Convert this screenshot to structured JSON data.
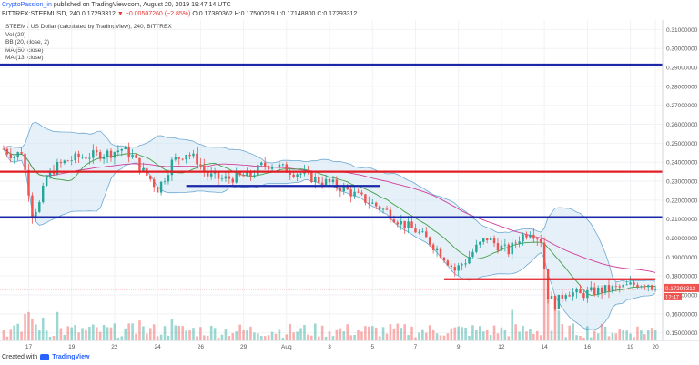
{
  "header": {
    "publisher_user": "CryptoPassion_in",
    "publisher_rest": " published on TradingView.com, August 20, 2019 19:47:14 UTC",
    "symbol_line": "BITTREX:STEEMUSD, 240  0.17293312",
    "change": "▼ −0.00507260 (−2.85%)",
    "ohlc": "O:0.17380362 H:0.17500219 L:0.17148800 C:0.17293312"
  },
  "legend": {
    "title": "STEEM / US Dollar (calculated by TradingView), 240, BITTREX",
    "lines": [
      "Vol (20)",
      "BB (20, close, 2)",
      "MA (50, close)",
      "MA (13, close)"
    ]
  },
  "footer": {
    "prefix": "Created with",
    "brand": "TradingView"
  },
  "chart_data": {
    "type": "candlestick",
    "title": "STEEM / US Dollar (calculated by TradingView), 240, BITTREX",
    "y_tick_labels": [
      "0.31000000",
      "0.30000000",
      "0.29000000",
      "0.28000000",
      "0.27000000",
      "0.26000000",
      "0.25000000",
      "0.24000000",
      "0.23000000",
      "0.22000000",
      "0.21000000",
      "0.20000000",
      "0.19000000",
      "0.18000000",
      "0.17000000",
      "0.16000000",
      "0.15000000"
    ],
    "y_ticks": [
      0.31,
      0.3,
      0.29,
      0.28,
      0.27,
      0.26,
      0.25,
      0.24,
      0.23,
      0.22,
      0.21,
      0.2,
      0.19,
      0.18,
      0.17,
      0.16,
      0.15
    ],
    "ylim": [
      0.146,
      0.315
    ],
    "x_tick_labels": [
      "17",
      "19",
      "22",
      "24",
      "26",
      "29",
      "Aug",
      "3",
      "5",
      "7",
      "9",
      "12",
      "14",
      "16",
      "19",
      "20"
    ],
    "x_ticks": [
      2,
      14,
      26,
      38,
      50,
      62,
      74,
      86,
      98,
      110,
      122,
      134,
      146,
      158,
      170,
      177
    ],
    "xlim": [
      -6,
      179
    ],
    "last_price_label": "0.17293312",
    "countdown_label": "12:47",
    "last_price": 0.17293312,
    "price_anchors": [
      [
        -5,
        0.247
      ],
      [
        -2,
        0.243
      ],
      [
        0,
        0.246
      ],
      [
        2,
        0.225
      ],
      [
        3,
        0.213
      ],
      [
        5,
        0.218
      ],
      [
        7,
        0.232
      ],
      [
        10,
        0.238
      ],
      [
        13,
        0.241
      ],
      [
        17,
        0.243
      ],
      [
        21,
        0.244
      ],
      [
        25,
        0.245
      ],
      [
        28,
        0.247
      ],
      [
        31,
        0.243
      ],
      [
        34,
        0.235
      ],
      [
        36,
        0.231
      ],
      [
        38,
        0.226
      ],
      [
        40,
        0.232
      ],
      [
        42,
        0.24
      ],
      [
        46,
        0.245
      ],
      [
        49,
        0.241
      ],
      [
        52,
        0.233
      ],
      [
        56,
        0.231
      ],
      [
        60,
        0.232
      ],
      [
        64,
        0.233
      ],
      [
        67,
        0.238
      ],
      [
        70,
        0.239
      ],
      [
        74,
        0.236
      ],
      [
        78,
        0.234
      ],
      [
        82,
        0.231
      ],
      [
        86,
        0.229
      ],
      [
        90,
        0.226
      ],
      [
        94,
        0.222
      ],
      [
        98,
        0.218
      ],
      [
        102,
        0.214
      ],
      [
        106,
        0.208
      ],
      [
        110,
        0.204
      ],
      [
        114,
        0.198
      ],
      [
        118,
        0.19
      ],
      [
        121,
        0.183
      ],
      [
        124,
        0.188
      ],
      [
        127,
        0.195
      ],
      [
        130,
        0.2
      ],
      [
        133,
        0.196
      ],
      [
        136,
        0.193
      ],
      [
        139,
        0.2
      ],
      [
        142,
        0.204
      ],
      [
        145,
        0.199
      ],
      [
        147,
        0.17
      ],
      [
        149,
        0.165
      ],
      [
        152,
        0.172
      ],
      [
        156,
        0.17
      ],
      [
        160,
        0.172
      ],
      [
        164,
        0.173
      ],
      [
        168,
        0.174
      ],
      [
        172,
        0.176
      ],
      [
        175,
        0.176
      ],
      [
        177,
        0.1729
      ]
    ],
    "levels": [
      {
        "color": "#1a27a8",
        "y": 0.2915,
        "x_from": -6,
        "x_to": 179
      },
      {
        "color": "#1a27a8",
        "y": 0.211,
        "x_from": -6,
        "x_to": 179
      },
      {
        "color": "#e21d24",
        "y": 0.235,
        "x_from": -6,
        "x_to": 179
      },
      {
        "color": "#1a27a8",
        "y": 0.2275,
        "x_from": 46,
        "x_to": 100
      },
      {
        "color": "#e21d24",
        "y": 0.1783,
        "x_from": 118,
        "x_to": 177
      }
    ],
    "colors": {
      "up": "#26a69a",
      "down": "#ef5350",
      "bb_fill": "#cfe3f2",
      "bb_line": "#6ea8d4",
      "ma_fast": "#43a047",
      "ma_slow": "#d23f9a"
    },
    "grid": true,
    "legend_placement": "top-left"
  }
}
